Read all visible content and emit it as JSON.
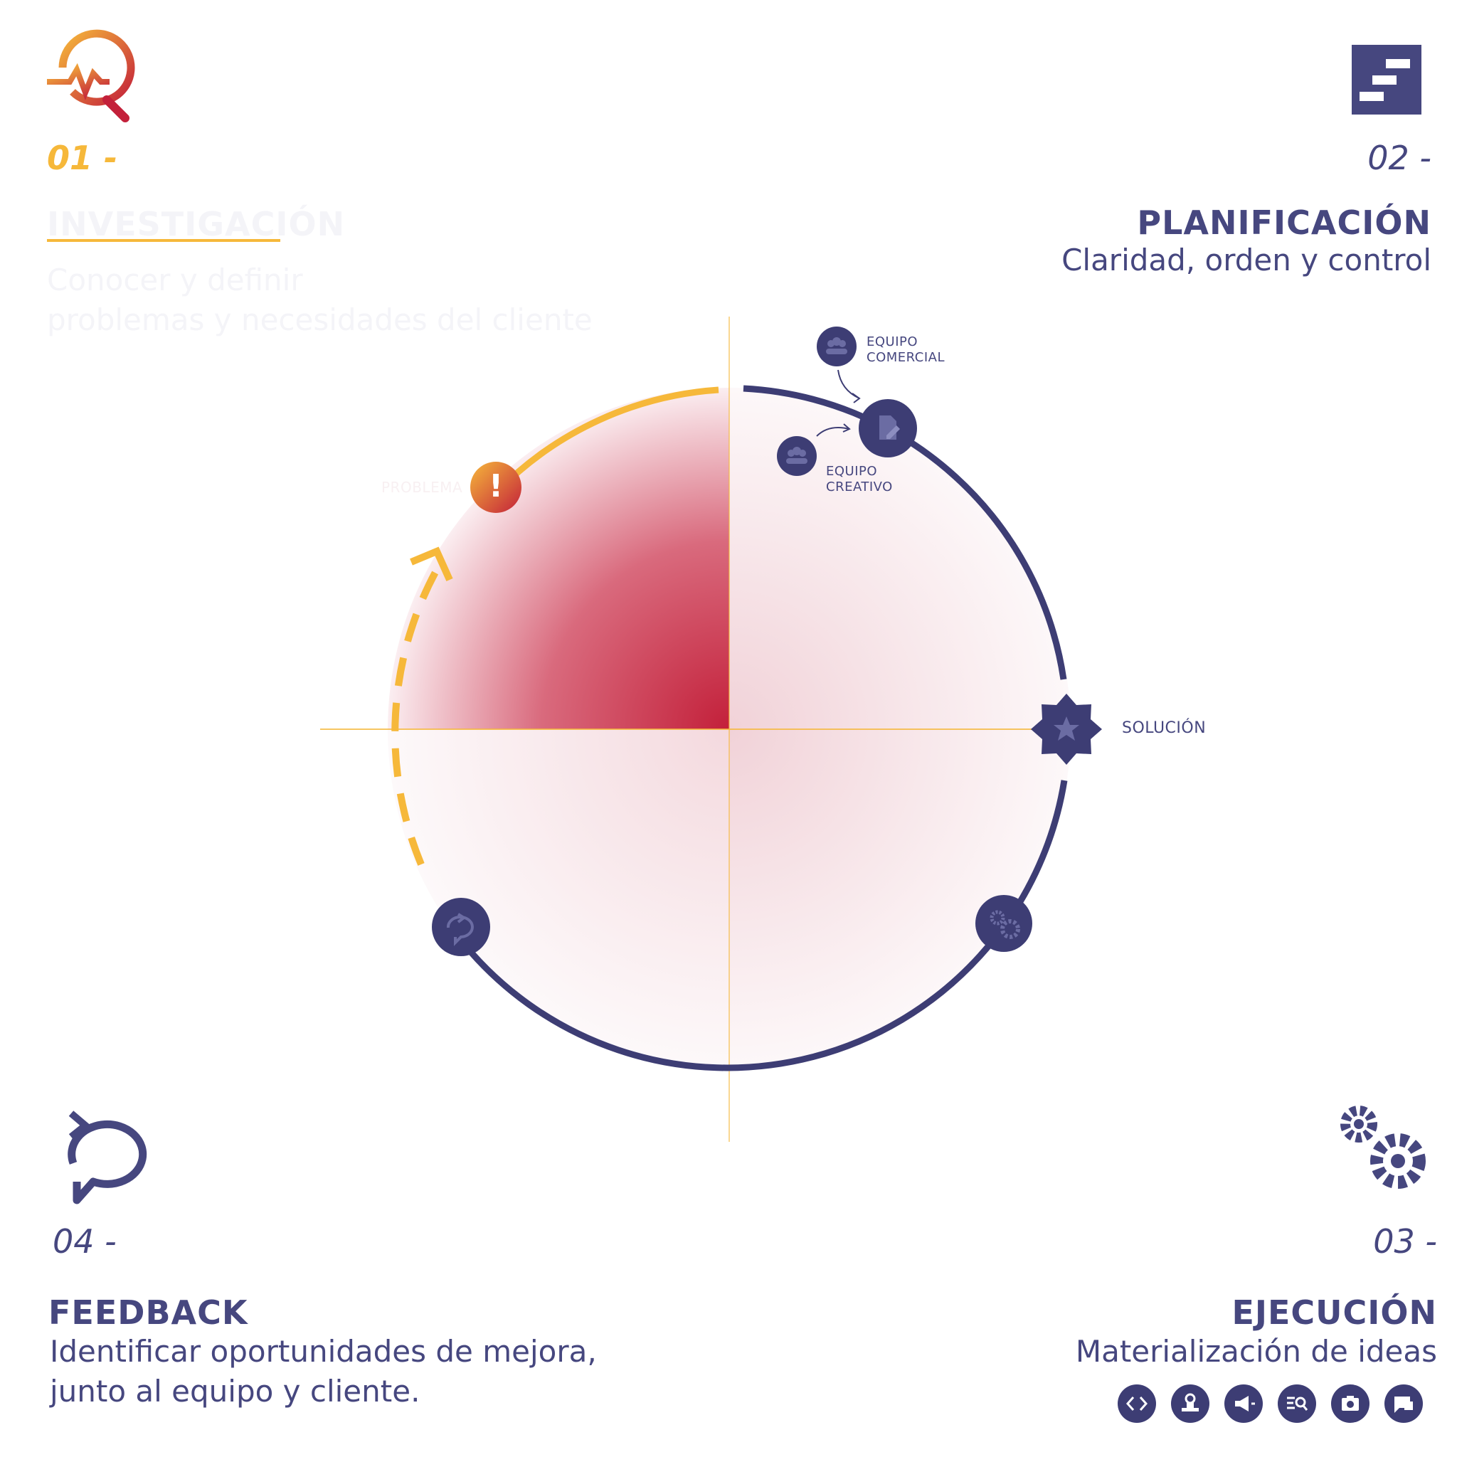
{
  "corners": {
    "top_left": {
      "number": "01 -",
      "title": "INVESTIGACIÓN",
      "subtitle_lines": [
        "Conocer y definir",
        "problemas y necesidades del cliente"
      ]
    },
    "top_right": {
      "number": "02 -",
      "title": "PLANIFICACIÓN",
      "subtitle": "Claridad, orden y control"
    },
    "bottom_right": {
      "number": "03 -",
      "title": "EJECUCIÓN",
      "subtitle": "Materialización de ideas"
    },
    "bottom_left": {
      "number": "04 -",
      "title": "FEEDBACK",
      "subtitle_lines": [
        "Identificar oportunidades de mejora,",
        "junto al equipo y cliente."
      ]
    }
  },
  "diagram": {
    "labels": {
      "equipo_comercial": [
        "EQUIPO",
        "COMERCIAL"
      ],
      "equipo_creativo": [
        "EQUIPO",
        "CREATIVO"
      ],
      "solucion": "SOLUCIÓN",
      "problema": "PROBLEMA",
      "alert_symbol": "!"
    }
  },
  "execution_tools": [
    "code-icon",
    "stamp-icon",
    "megaphone-icon",
    "search-list-icon",
    "camera-icon",
    "chat-icon"
  ],
  "colors": {
    "navy": "#3d3d74",
    "accent_yellow": "#f6b83a",
    "accent_red": "#c3203a",
    "gradient_orange": "#f39a2b"
  }
}
